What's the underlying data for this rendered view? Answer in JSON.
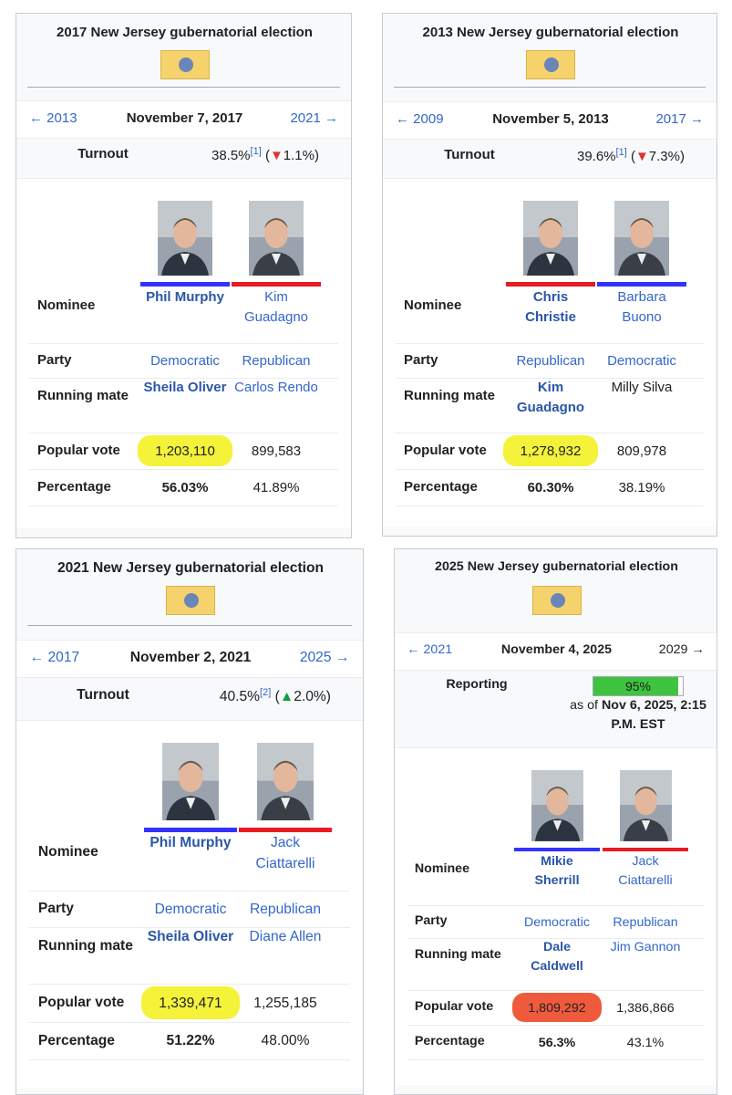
{
  "panels": [
    {
      "title": "2017 New Jersey gubernatorial election",
      "prev": "← 2013",
      "date": "November 7, 2017",
      "next": "2021 →",
      "turnout": {
        "label": "Turnout",
        "value": "38.5%",
        "ref": "[1]",
        "open": "(",
        "arrow": "▼",
        "arrow_color": "#d33",
        "change": "1.1%",
        "close": ")"
      },
      "row_labels": [
        "Nominee",
        "Party",
        "Running mate",
        "Popular vote",
        "Percentage"
      ],
      "candidates": [
        {
          "name": "Phil Murphy",
          "party": "Democratic",
          "running_mate": "Sheila Oliver",
          "running_mate_link": true,
          "popular_vote": "1,203,110",
          "percentage": "56.03%",
          "winner": true,
          "color": "#3333ff",
          "highlight": "#f5f23a"
        },
        {
          "name": "Kim Guadagno",
          "party": "Republican",
          "running_mate": "Carlos Rendo",
          "running_mate_link": true,
          "popular_vote": "899,583",
          "percentage": "41.89%",
          "winner": false,
          "color": "#e81b23"
        }
      ]
    },
    {
      "title": "2013 New Jersey gubernatorial election",
      "prev": "← 2009",
      "date": "November 5, 2013",
      "next": "2017 →",
      "turnout": {
        "label": "Turnout",
        "value": "39.6%",
        "ref": "[1]",
        "open": "(",
        "arrow": "▼",
        "arrow_color": "#d33",
        "change": "7.3%",
        "close": ")"
      },
      "row_labels": [
        "Nominee",
        "Party",
        "Running mate",
        "Popular vote",
        "Percentage"
      ],
      "candidates": [
        {
          "name": "Chris Christie",
          "party": "Republican",
          "running_mate": "Kim Guadagno",
          "running_mate_link": true,
          "popular_vote": "1,278,932",
          "percentage": "60.30%",
          "winner": true,
          "color": "#e81b23",
          "highlight": "#f5f23a"
        },
        {
          "name": "Barbara Buono",
          "party": "Democratic",
          "running_mate": "Milly Silva",
          "running_mate_link": false,
          "popular_vote": "809,978",
          "percentage": "38.19%",
          "winner": false,
          "color": "#3333ff"
        }
      ]
    },
    {
      "title": "2021 New Jersey gubernatorial election",
      "prev": "← 2017",
      "date": "November 2, 2021",
      "next": "2025 →",
      "turnout": {
        "label": "Turnout",
        "value": "40.5%",
        "ref": "[2]",
        "open": "(",
        "arrow": "▲",
        "arrow_color": "#14a03c",
        "change": "2.0%",
        "close": ")"
      },
      "row_labels": [
        "Nominee",
        "Party",
        "Running mate",
        "Popular vote",
        "Percentage"
      ],
      "candidates": [
        {
          "name": "Phil Murphy",
          "party": "Democratic",
          "running_mate": "Sheila Oliver",
          "running_mate_link": true,
          "popular_vote": "1,339,471",
          "percentage": "51.22%",
          "winner": true,
          "color": "#3333ff",
          "highlight": "#f5f23a"
        },
        {
          "name": "Jack Ciattarelli",
          "party": "Republican",
          "running_mate": "Diane Allen",
          "running_mate_link": true,
          "popular_vote": "1,255,185",
          "percentage": "48.00%",
          "winner": false,
          "color": "#e81b23"
        }
      ]
    },
    {
      "title": "2025 New Jersey gubernatorial election",
      "prev": "← 2021",
      "date": "November 4, 2025",
      "next": "2029 →",
      "reporting": {
        "label": "Reporting",
        "value": 95,
        "value_label": "95%",
        "as_of_prefix": "as of",
        "as_of": "Nov 6, 2025, 2:15 P.M. EST"
      },
      "row_labels": [
        "Nominee",
        "Party",
        "Running mate",
        "Popular vote",
        "Percentage"
      ],
      "candidates": [
        {
          "name": "Mikie Sherrill",
          "party": "Democratic",
          "running_mate": "Dale Caldwell",
          "running_mate_link": true,
          "popular_vote": "1,809,292",
          "percentage": "56.3%",
          "winner": true,
          "color": "#3333ff",
          "highlight": "#f05a3c"
        },
        {
          "name": "Jack Ciattarelli",
          "party": "Republican",
          "running_mate": "Jim Gannon",
          "running_mate_link": true,
          "popular_vote": "1,386,866",
          "percentage": "43.1%",
          "winner": false,
          "color": "#e81b23"
        }
      ]
    }
  ]
}
